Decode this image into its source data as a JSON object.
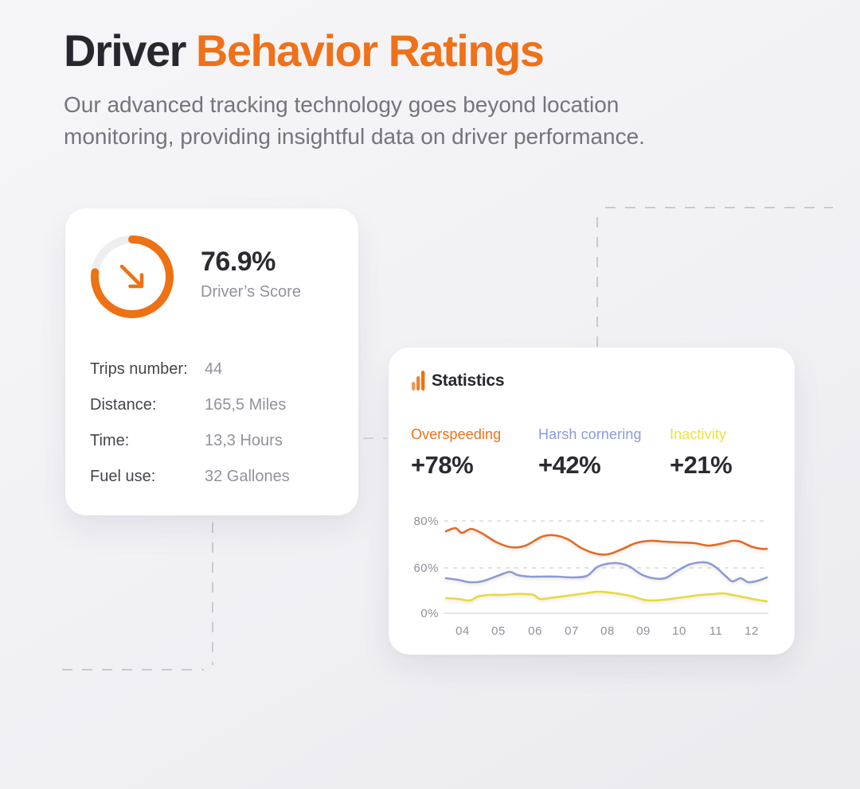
{
  "header": {
    "title_dark": "Driver",
    "title_accent": "Behavior Ratings",
    "subtitle": "Our advanced tracking technology goes beyond location monitoring, providing insightful data on driver performance."
  },
  "colors": {
    "accent_orange": "#ef7119",
    "metric_blue": "#8c9bd5",
    "metric_yellow": "#ece33f",
    "dark_text": "#27272d",
    "gray_text": "#92929a",
    "card_bg": "#ffffff",
    "page_bg": "#f1f1f4",
    "dashed_decor": "#c9cad0"
  },
  "score_card": {
    "score": "76.9%",
    "score_label": "Driver’s Score",
    "gauge_percent": 76.9,
    "stats": [
      {
        "label": "Trips number:",
        "value": "44"
      },
      {
        "label": "Distance:",
        "value": "165,5 Miles"
      },
      {
        "label": "Time:",
        "value": "13,3 Hours"
      },
      {
        "label": "Fuel use:",
        "value": "32 Gallones"
      }
    ]
  },
  "stats_card": {
    "title": "Statistics",
    "metrics": [
      {
        "label": "Overspeeding",
        "value": "+78%",
        "color": "#ef7119"
      },
      {
        "label": "Harsh cornering",
        "value": "+42%",
        "color": "#8c9bd5"
      },
      {
        "label": "Inactivity",
        "value": "+21%",
        "color": "#ece33f"
      }
    ]
  },
  "chart_data": {
    "type": "line",
    "title": "Statistics",
    "x": [
      "04",
      "05",
      "06",
      "07",
      "08",
      "09",
      "10",
      "11",
      "12"
    ],
    "series": [
      {
        "name": "Overspeeding",
        "color": "#e06c28",
        "values": [
          75,
          71,
          73,
          69,
          67,
          71,
          71,
          71,
          69
        ]
      },
      {
        "name": "Harsh cornering",
        "color": "#8c9bd5",
        "values": [
          56,
          54,
          57,
          57,
          61,
          56,
          59,
          62,
          54
        ]
      },
      {
        "name": "Inactivity",
        "color": "#e7da3e",
        "values": [
          26,
          28,
          29,
          30,
          31,
          26,
          28,
          30,
          24
        ]
      }
    ],
    "ylabel_ticks": [
      "80%",
      "60%",
      "0%"
    ],
    "ylim": [
      0,
      100
    ],
    "grid": "horizontal dashed gridlines at 60% and 80%, solid baseline at 0%",
    "legend_position": "labels above chart as colored metric headings",
    "render": {
      "plot_x": [
        53,
        460
      ],
      "grid_dashed_y": [
        15,
        74
      ],
      "axis_y": 131,
      "y_label_x": 46,
      "y_ticks": [
        {
          "label": "80%",
          "y": 15
        },
        {
          "label": "60%",
          "y": 74
        },
        {
          "label": "0%",
          "y": 131
        }
      ],
      "x_positions": [
        76,
        121,
        167,
        213,
        258,
        303,
        348,
        394,
        439
      ],
      "x_label_y": 158,
      "series_points": [
        [
          [
            55,
            28
          ],
          [
            67,
            24
          ],
          [
            75,
            30
          ],
          [
            87,
            25
          ],
          [
            101,
            31
          ],
          [
            119,
            42
          ],
          [
            137,
            48
          ],
          [
            155,
            46
          ],
          [
            175,
            35
          ],
          [
            191,
            33
          ],
          [
            208,
            38
          ],
          [
            225,
            49
          ],
          [
            243,
            56
          ],
          [
            258,
            57
          ],
          [
            275,
            51
          ],
          [
            293,
            43
          ],
          [
            311,
            40
          ],
          [
            329,
            41
          ],
          [
            348,
            42
          ],
          [
            368,
            43
          ],
          [
            385,
            46
          ],
          [
            403,
            43
          ],
          [
            415,
            40
          ],
          [
            425,
            41
          ],
          [
            438,
            47
          ],
          [
            451,
            50
          ],
          [
            458,
            50
          ]
        ],
        [
          [
            55,
            87
          ],
          [
            70,
            89
          ],
          [
            85,
            92
          ],
          [
            100,
            91
          ],
          [
            120,
            84
          ],
          [
            135,
            79
          ],
          [
            145,
            83
          ],
          [
            160,
            85
          ],
          [
            175,
            85
          ],
          [
            195,
            85
          ],
          [
            215,
            86
          ],
          [
            232,
            84
          ],
          [
            245,
            73
          ],
          [
            257,
            69
          ],
          [
            270,
            68
          ],
          [
            285,
            72
          ],
          [
            300,
            82
          ],
          [
            315,
            87
          ],
          [
            330,
            87
          ],
          [
            345,
            78
          ],
          [
            360,
            70
          ],
          [
            375,
            67
          ],
          [
            385,
            68
          ],
          [
            395,
            74
          ],
          [
            407,
            85
          ],
          [
            415,
            91
          ],
          [
            425,
            87
          ],
          [
            435,
            92
          ],
          [
            447,
            90
          ],
          [
            458,
            86
          ]
        ],
        [
          [
            55,
            112
          ],
          [
            70,
            113
          ],
          [
            85,
            115
          ],
          [
            95,
            110
          ],
          [
            110,
            108
          ],
          [
            125,
            108
          ],
          [
            140,
            107
          ],
          [
            155,
            107
          ],
          [
            165,
            108
          ],
          [
            173,
            113
          ],
          [
            185,
            112
          ],
          [
            200,
            110
          ],
          [
            215,
            108
          ],
          [
            230,
            106
          ],
          [
            245,
            104
          ],
          [
            260,
            105
          ],
          [
            275,
            107
          ],
          [
            290,
            110
          ],
          [
            303,
            114
          ],
          [
            315,
            115
          ],
          [
            330,
            114
          ],
          [
            345,
            112
          ],
          [
            360,
            110
          ],
          [
            375,
            108
          ],
          [
            390,
            107
          ],
          [
            403,
            106
          ],
          [
            415,
            108
          ],
          [
            430,
            111
          ],
          [
            445,
            114
          ],
          [
            458,
            116
          ]
        ]
      ]
    }
  }
}
